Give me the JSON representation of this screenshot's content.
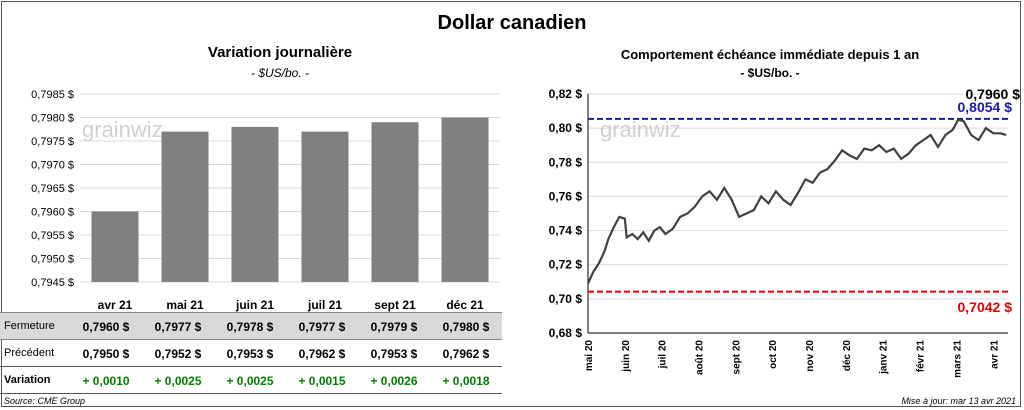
{
  "title": "Dollar canadien",
  "watermark": "grainwiz",
  "left_chart": {
    "title": "Variation  journalière",
    "unit": "- $US/bo. -"
  },
  "right_chart": {
    "title": "Comportement échéance immédiate depuis 1 an",
    "unit": "- $US/bo. -",
    "last_label": "0,7960 $",
    "high_label": "0,8054 $",
    "low_label": "0,7042 $"
  },
  "table": {
    "rows": [
      {
        "label": "Fermeture",
        "values": [
          "0,7960  $",
          "0,7977  $",
          "0,7978  $",
          "0,7977  $",
          "0,7979  $",
          "0,7980  $"
        ]
      },
      {
        "label": "Précédent",
        "values": [
          "0,7950  $",
          "0,7952  $",
          "0,7953  $",
          "0,7962  $",
          "0,7953  $",
          "0,7962  $"
        ]
      },
      {
        "label": "Variation",
        "values": [
          "+ 0,0010",
          "+ 0,0025",
          "+ 0,0025",
          "+ 0,0015",
          "+ 0,0026",
          "+ 0,0018"
        ]
      }
    ]
  },
  "footer": {
    "source": "Source: CME Group",
    "update": "Mise à jour: mar 13 avr 2021"
  },
  "colors": {
    "bar": "#808080",
    "line": "#404040",
    "high_line": "#1a1aa6",
    "low_line": "#e60000",
    "positive": "#008000"
  },
  "chart_data": [
    {
      "type": "bar",
      "title": "Variation  journalière",
      "subtitle": "- $US/bo. -",
      "categories": [
        "avr 21",
        "mai 21",
        "juin 21",
        "juil 21",
        "sept 21",
        "déc 21"
      ],
      "values": [
        0.796,
        0.7977,
        0.7978,
        0.7977,
        0.7979,
        0.798
      ],
      "ylim": [
        0.7945,
        0.7985
      ],
      "yticks": [
        0.7945,
        0.795,
        0.7955,
        0.796,
        0.7965,
        0.797,
        0.7975,
        0.798,
        0.7985
      ],
      "ytick_labels": [
        "0,7945 $",
        "0,7950 $",
        "0,7955 $",
        "0,7960 $",
        "0,7965 $",
        "0,7970 $",
        "0,7975 $",
        "0,7980 $",
        "0,7985 $"
      ],
      "grid": true
    },
    {
      "type": "line",
      "title": "Comportement échéance immédiate depuis 1 an",
      "subtitle": "- $US/bo. -",
      "ylim": [
        0.68,
        0.82
      ],
      "yticks": [
        0.68,
        0.7,
        0.72,
        0.74,
        0.76,
        0.78,
        0.8,
        0.82
      ],
      "ytick_labels": [
        "0,68 $",
        "0,70 $",
        "0,72 $",
        "0,74 $",
        "0,76 $",
        "0,78 $",
        "0,80 $",
        "0,82 $"
      ],
      "xlim": [
        0,
        11.4
      ],
      "xticks": [
        0,
        1,
        2,
        3,
        4,
        5,
        6,
        7,
        8,
        9,
        10,
        11
      ],
      "xtick_labels": [
        "mai 20",
        "juin 20",
        "juil 20",
        "août 20",
        "sept 20",
        "oct 20",
        "nov 20",
        "déc 20",
        "janv 21",
        "févr 21",
        "mars 21",
        "avr 21"
      ],
      "series": [
        {
          "x": [
            0.0,
            0.15,
            0.3,
            0.45,
            0.55,
            0.7,
            0.85,
            1.0,
            1.05,
            1.2,
            1.35,
            1.5,
            1.65,
            1.8,
            1.95,
            2.1,
            2.3,
            2.5,
            2.7,
            2.9,
            3.1,
            3.3,
            3.5,
            3.7,
            3.9,
            4.1,
            4.3,
            4.5,
            4.7,
            4.9,
            5.1,
            5.3,
            5.5,
            5.7,
            5.9,
            6.1,
            6.3,
            6.5,
            6.7,
            6.9,
            7.1,
            7.3,
            7.5,
            7.7,
            7.9,
            8.1,
            8.3,
            8.5,
            8.7,
            8.9,
            9.1,
            9.3,
            9.5,
            9.7,
            9.9,
            10.05,
            10.2,
            10.4,
            10.6,
            10.8,
            11.0,
            11.2,
            11.35
          ],
          "y": [
            0.709,
            0.716,
            0.721,
            0.728,
            0.735,
            0.742,
            0.748,
            0.747,
            0.736,
            0.738,
            0.735,
            0.739,
            0.734,
            0.74,
            0.742,
            0.738,
            0.741,
            0.748,
            0.75,
            0.754,
            0.76,
            0.763,
            0.758,
            0.765,
            0.758,
            0.748,
            0.75,
            0.752,
            0.76,
            0.756,
            0.763,
            0.758,
            0.755,
            0.762,
            0.77,
            0.768,
            0.774,
            0.776,
            0.781,
            0.787,
            0.784,
            0.782,
            0.788,
            0.787,
            0.79,
            0.786,
            0.788,
            0.782,
            0.785,
            0.79,
            0.793,
            0.796,
            0.789,
            0.796,
            0.799,
            0.805,
            0.804,
            0.796,
            0.793,
            0.8,
            0.797,
            0.797,
            0.796
          ]
        }
      ],
      "reference_lines": [
        {
          "y": 0.8054,
          "label": "0,8054 $",
          "color": "#1a1aa6",
          "style": "dashed"
        },
        {
          "y": 0.7042,
          "label": "0,7042 $",
          "color": "#e60000",
          "style": "dashed"
        }
      ],
      "last_value": 0.796,
      "grid": true
    }
  ]
}
